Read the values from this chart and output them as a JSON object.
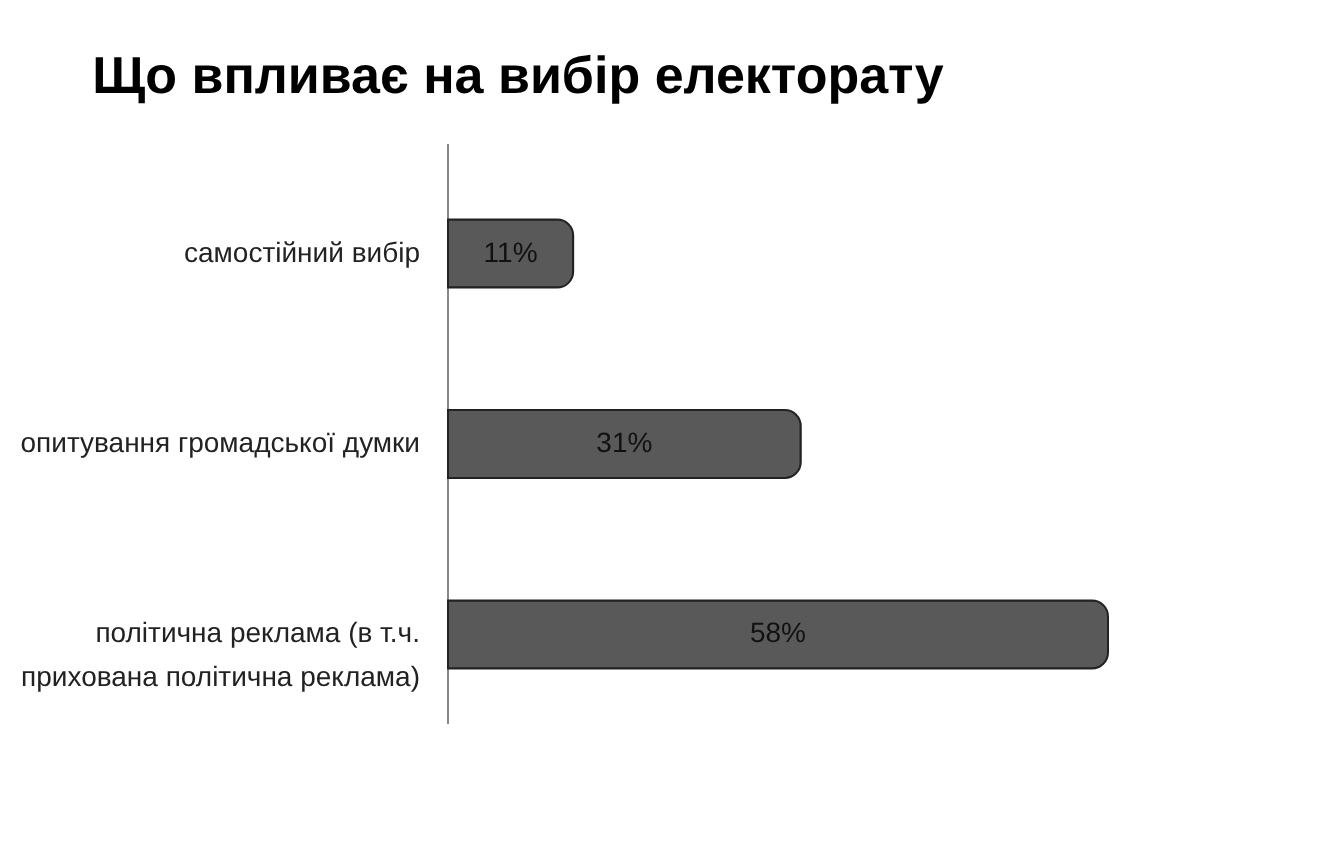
{
  "chart_data": {
    "type": "bar",
    "orientation": "horizontal",
    "title": "Що впливає на вибір електорату",
    "categories": [
      "самостійний вибір",
      "опитування громадської думки",
      "політична реклама (в т.ч. прихована політична реклама)"
    ],
    "values": [
      11,
      31,
      58
    ],
    "value_labels": [
      "11%",
      "31%",
      "58%"
    ],
    "color": "#595959"
  }
}
